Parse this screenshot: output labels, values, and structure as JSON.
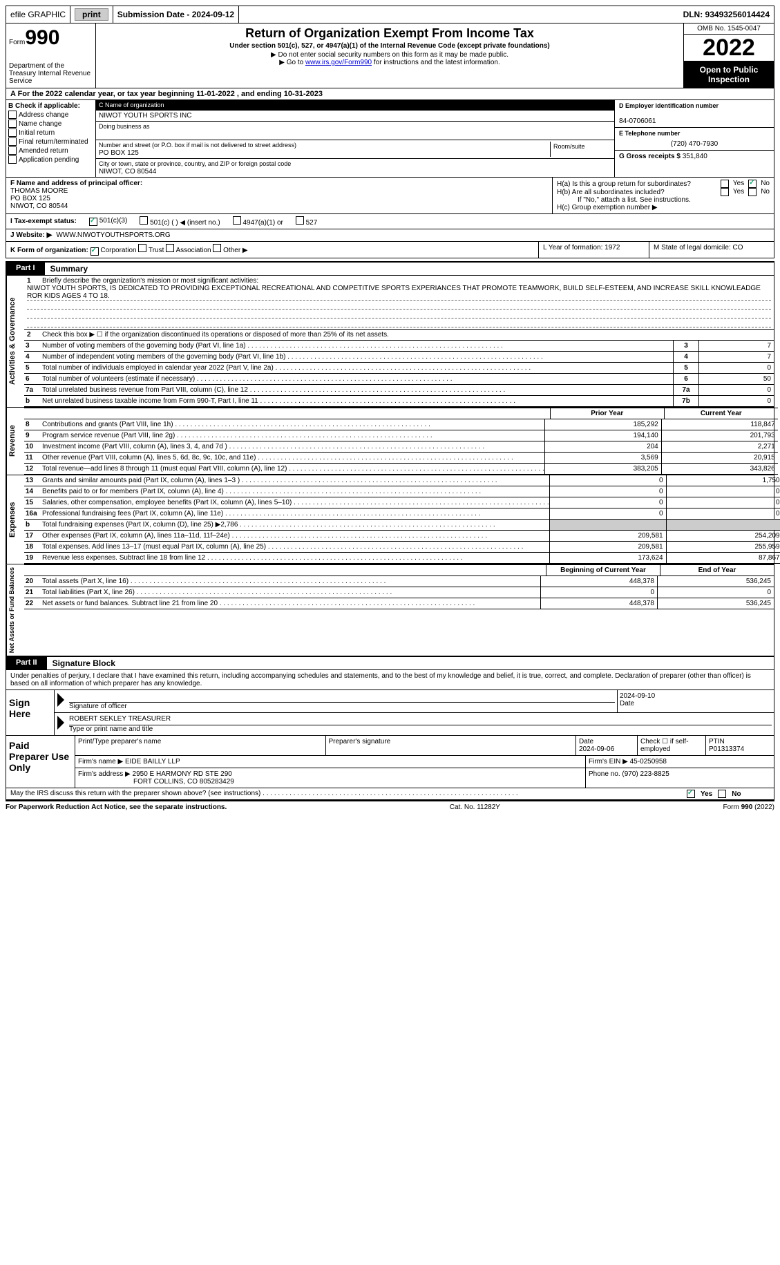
{
  "topbar": {
    "efile": "efile GRAPHIC",
    "print_btn": "print",
    "sub_date_label": "Submission Date - 2024-09-12",
    "dln": "DLN: 93493256014424"
  },
  "header": {
    "form_label": "Form",
    "form_number": "990",
    "dept": "Department of the Treasury\nInternal Revenue Service",
    "title": "Return of Organization Exempt From Income Tax",
    "sub1": "Under section 501(c), 527, or 4947(a)(1) of the Internal Revenue Code (except private foundations)",
    "sub2": "▶ Do not enter social security numbers on this form as it may be made public.",
    "sub3_pre": "▶ Go to ",
    "sub3_link": "www.irs.gov/Form990",
    "sub3_post": " for instructions and the latest information.",
    "omb": "OMB No. 1545-0047",
    "year": "2022",
    "open": "Open to Public Inspection"
  },
  "line_a": "A   For the 2022 calendar year, or tax year beginning 11-01-2022    , and ending 10-31-2023",
  "section_b": {
    "label": "B Check if applicable:",
    "items": [
      "Address change",
      "Name change",
      "Initial return",
      "Final return/terminated",
      "Amended return",
      "Application pending"
    ]
  },
  "section_c": {
    "name_lbl": "C Name of organization",
    "name": "NIWOT YOUTH SPORTS INC",
    "dba_lbl": "Doing business as",
    "street_lbl": "Number and street (or P.O. box if mail is not delivered to street address)",
    "street": "PO BOX 125",
    "room_lbl": "Room/suite",
    "city_lbl": "City or town, state or province, country, and ZIP or foreign postal code",
    "city": "NIWOT, CO  80544"
  },
  "section_d": {
    "lbl": "D Employer identification number",
    "val": "84-0706061"
  },
  "section_e": {
    "lbl": "E Telephone number",
    "val": "(720) 470-7930"
  },
  "section_g": {
    "lbl": "G Gross receipts $",
    "val": "351,840"
  },
  "section_f": {
    "lbl": "F Name and address of principal officer:",
    "name": "THOMAS MOORE",
    "addr1": "PO BOX 125",
    "addr2": "NIWOT, CO  80544"
  },
  "section_h": {
    "a": "H(a)  Is this a group return for subordinates?",
    "b": "H(b)  Are all subordinates included?",
    "b_note": "If \"No,\" attach a list. See instructions.",
    "c": "H(c)  Group exemption number ▶",
    "yes": "Yes",
    "no": "No"
  },
  "section_i": {
    "lbl": "I   Tax-exempt status:",
    "opts": [
      "501(c)(3)",
      "501(c) (  ) ◀ (insert no.)",
      "4947(a)(1) or",
      "527"
    ]
  },
  "section_j": {
    "lbl": "J   Website: ▶",
    "val": "WWW.NIWOTYOUTHSPORTS.ORG"
  },
  "section_k": {
    "lbl": "K Form of organization:",
    "opts": [
      "Corporation",
      "Trust",
      "Association",
      "Other ▶"
    ]
  },
  "section_l": "L Year of formation: 1972",
  "section_m": "M State of legal domicile: CO",
  "part1": {
    "tab": "Part I",
    "title": "Summary"
  },
  "summary": {
    "line1_lbl": "Briefly describe the organization's mission or most significant activities:",
    "line1_val": "NIWOT YOUTH SPORTS, IS DEDICATED TO PROVIDING EXCEPTIONAL RECREATIONAL AND COMPETITIVE SPORTS EXPERIANCES THAT PROMOTE TEAMWORK, BUILD SELF-ESTEEM, AND INCREASE SKILL KNOWLEADGE ROR KIDS AGES 4 TO 18.",
    "line2": "Check this box ▶ ☐ if the organization discontinued its operations or disposed of more than 25% of its net assets.",
    "lines_small": [
      {
        "n": "3",
        "t": "Number of voting members of the governing body (Part VI, line 1a)",
        "box": "3",
        "v": "7"
      },
      {
        "n": "4",
        "t": "Number of independent voting members of the governing body (Part VI, line 1b)",
        "box": "4",
        "v": "7"
      },
      {
        "n": "5",
        "t": "Total number of individuals employed in calendar year 2022 (Part V, line 2a)",
        "box": "5",
        "v": "0"
      },
      {
        "n": "6",
        "t": "Total number of volunteers (estimate if necessary)",
        "box": "6",
        "v": "50"
      },
      {
        "n": "7a",
        "t": "Total unrelated business revenue from Part VIII, column (C), line 12",
        "box": "7a",
        "v": "0"
      },
      {
        "n": "b",
        "t": "Net unrelated business taxable income from Form 990-T, Part I, line 11",
        "box": "7b",
        "v": "0"
      }
    ],
    "hdr_prior": "Prior Year",
    "hdr_current": "Current Year",
    "revenue": [
      {
        "n": "8",
        "t": "Contributions and grants (Part VIII, line 1h)",
        "p": "185,292",
        "c": "118,847"
      },
      {
        "n": "9",
        "t": "Program service revenue (Part VIII, line 2g)",
        "p": "194,140",
        "c": "201,793"
      },
      {
        "n": "10",
        "t": "Investment income (Part VIII, column (A), lines 3, 4, and 7d )",
        "p": "204",
        "c": "2,271"
      },
      {
        "n": "11",
        "t": "Other revenue (Part VIII, column (A), lines 5, 6d, 8c, 9c, 10c, and 11e)",
        "p": "3,569",
        "c": "20,915"
      },
      {
        "n": "12",
        "t": "Total revenue—add lines 8 through 11 (must equal Part VIII, column (A), line 12)",
        "p": "383,205",
        "c": "343,826"
      }
    ],
    "expenses": [
      {
        "n": "13",
        "t": "Grants and similar amounts paid (Part IX, column (A), lines 1–3 )",
        "p": "0",
        "c": "1,750"
      },
      {
        "n": "14",
        "t": "Benefits paid to or for members (Part IX, column (A), line 4)",
        "p": "0",
        "c": "0"
      },
      {
        "n": "15",
        "t": "Salaries, other compensation, employee benefits (Part IX, column (A), lines 5–10)",
        "p": "0",
        "c": "0"
      },
      {
        "n": "16a",
        "t": "Professional fundraising fees (Part IX, column (A), line 11e)",
        "p": "0",
        "c": "0"
      },
      {
        "n": "b",
        "t": "Total fundraising expenses (Part IX, column (D), line 25) ▶2,786",
        "p": "shaded",
        "c": "shaded"
      },
      {
        "n": "17",
        "t": "Other expenses (Part IX, column (A), lines 11a–11d, 11f–24e)",
        "p": "209,581",
        "c": "254,209"
      },
      {
        "n": "18",
        "t": "Total expenses. Add lines 13–17 (must equal Part IX, column (A), line 25)",
        "p": "209,581",
        "c": "255,959"
      },
      {
        "n": "19",
        "t": "Revenue less expenses. Subtract line 18 from line 12",
        "p": "173,624",
        "c": "87,867"
      }
    ],
    "hdr_begin": "Beginning of Current Year",
    "hdr_end": "End of Year",
    "netassets": [
      {
        "n": "20",
        "t": "Total assets (Part X, line 16)",
        "p": "448,378",
        "c": "536,245"
      },
      {
        "n": "21",
        "t": "Total liabilities (Part X, line 26)",
        "p": "0",
        "c": "0"
      },
      {
        "n": "22",
        "t": "Net assets or fund balances. Subtract line 21 from line 20",
        "p": "448,378",
        "c": "536,245"
      }
    ],
    "vert_labels": {
      "gov": "Activities & Governance",
      "rev": "Revenue",
      "exp": "Expenses",
      "net": "Net Assets or Fund Balances"
    }
  },
  "part2": {
    "tab": "Part II",
    "title": "Signature Block"
  },
  "sig_declaration": "Under penalties of perjury, I declare that I have examined this return, including accompanying schedules and statements, and to the best of my knowledge and belief, it is true, correct, and complete. Declaration of preparer (other than officer) is based on all information of which preparer has any knowledge.",
  "sign": {
    "lbl": "Sign Here",
    "sig_lbl": "Signature of officer",
    "date_val": "2024-09-10",
    "date_lbl": "Date",
    "name": "ROBERT SEKLEY  TREASURER",
    "name_lbl": "Type or print name and title"
  },
  "prep": {
    "lbl": "Paid Preparer Use Only",
    "r1": {
      "name_lbl": "Print/Type preparer's name",
      "sig_lbl": "Preparer's signature",
      "date_lbl": "Date",
      "date_val": "2024-09-06",
      "check_lbl": "Check ☐ if self-employed",
      "ptin_lbl": "PTIN",
      "ptin_val": "P01313374"
    },
    "r2": {
      "firm_name_lbl": "Firm's name    ▶",
      "firm_name": "EIDE BAILLY LLP",
      "firm_ein_lbl": "Firm's EIN ▶",
      "firm_ein": "45-0250958"
    },
    "r3": {
      "firm_addr_lbl": "Firm's address ▶",
      "firm_addr1": "2950 E HARMONY RD STE 290",
      "firm_addr2": "FORT COLLINS, CO  805283429",
      "phone_lbl": "Phone no.",
      "phone": "(970) 223-8825"
    }
  },
  "discuss": {
    "txt": "May the IRS discuss this return with the preparer shown above? (see instructions)",
    "yes": "Yes",
    "no": "No"
  },
  "footer": {
    "left": "For Paperwork Reduction Act Notice, see the separate instructions.",
    "mid": "Cat. No. 11282Y",
    "right": "Form 990 (2022)"
  }
}
